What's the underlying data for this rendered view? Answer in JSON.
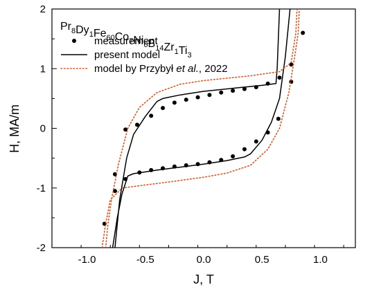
{
  "chart_data": {
    "type": "line",
    "formula": [
      {
        "t": "Pr",
        "sub": "8"
      },
      {
        "t": "Dy",
        "sub": "1"
      },
      {
        "t": "Fe",
        "sub": "60"
      },
      {
        "t": "Co",
        "sub": "7"
      },
      {
        "t": "Ni",
        "sub": "6"
      },
      {
        "t": "B",
        "sub": "14"
      },
      {
        "t": "Zr",
        "sub": "1"
      },
      {
        "t": "Ti",
        "sub": "3"
      }
    ],
    "xlabel": "J, T",
    "ylabel": "H, MA/m",
    "xlim": [
      -1.3,
      1.3
    ],
    "ylim": [
      -2,
      2
    ],
    "xticks": [
      -1.0,
      -0.5,
      0.0,
      0.5,
      1.0
    ],
    "xtick_labels": [
      "-1.0",
      "-0.5",
      "0.0",
      "0.5",
      "1.0"
    ],
    "yticks": [
      -2,
      -1,
      0,
      1,
      2
    ],
    "ytick_labels": [
      "-2",
      "-1",
      "0",
      "1",
      "2"
    ],
    "legend_position": "top-left",
    "series": [
      {
        "name": "measurement",
        "style": "scatter",
        "color": "#000000",
        "points": [
          [
            -0.85,
            -1.6
          ],
          [
            -0.76,
            -1.05
          ],
          [
            -0.76,
            -0.77
          ],
          [
            -0.67,
            -0.85
          ],
          [
            -0.55,
            -0.74
          ],
          [
            -0.45,
            -0.7
          ],
          [
            -0.35,
            -0.67
          ],
          [
            -0.25,
            -0.64
          ],
          [
            -0.15,
            -0.62
          ],
          [
            -0.05,
            -0.6
          ],
          [
            0.05,
            -0.57
          ],
          [
            0.15,
            -0.53
          ],
          [
            0.25,
            -0.47
          ],
          [
            0.35,
            -0.35
          ],
          [
            0.45,
            -0.22
          ],
          [
            0.55,
            -0.07
          ],
          [
            0.64,
            0.16
          ],
          [
            0.75,
            0.78
          ],
          [
            0.75,
            1.07
          ],
          [
            0.85,
            1.6
          ],
          [
            -0.67,
            -0.02
          ],
          [
            -0.57,
            0.06
          ],
          [
            -0.45,
            0.21
          ],
          [
            -0.35,
            0.34
          ],
          [
            -0.25,
            0.43
          ],
          [
            -0.15,
            0.48
          ],
          [
            -0.05,
            0.52
          ],
          [
            0.05,
            0.56
          ],
          [
            0.15,
            0.6
          ],
          [
            0.25,
            0.63
          ],
          [
            0.35,
            0.66
          ],
          [
            0.45,
            0.69
          ],
          [
            0.55,
            0.75
          ],
          [
            0.65,
            0.85
          ]
        ]
      },
      {
        "name": "present model",
        "style": "solid",
        "color": "#000000",
        "points": [
          [
            -0.78,
            -2.0
          ],
          [
            -0.74,
            -1.5
          ],
          [
            -0.7,
            -1.1
          ],
          [
            -0.65,
            -0.8
          ],
          [
            -0.6,
            -0.76
          ],
          [
            -0.5,
            -0.73
          ],
          [
            -0.4,
            -0.7
          ],
          [
            -0.2,
            -0.65
          ],
          [
            0.0,
            -0.6
          ],
          [
            0.2,
            -0.54
          ],
          [
            0.35,
            -0.48
          ],
          [
            0.4,
            -0.43
          ],
          [
            0.5,
            -0.2
          ],
          [
            0.58,
            0.1
          ],
          [
            0.65,
            0.5
          ],
          [
            0.7,
            1.2
          ],
          [
            0.74,
            2.0
          ],
          null,
          [
            0.65,
            2.0
          ],
          [
            0.64,
            1.5
          ],
          [
            0.63,
            1.0
          ],
          [
            0.62,
            0.75
          ],
          [
            0.5,
            0.72
          ],
          [
            0.3,
            0.68
          ],
          [
            0.0,
            0.62
          ],
          [
            -0.2,
            0.56
          ],
          [
            -0.35,
            0.5
          ],
          [
            -0.4,
            0.45
          ],
          [
            -0.5,
            0.2
          ],
          [
            -0.6,
            -0.1
          ],
          [
            -0.66,
            -0.5
          ],
          [
            -0.72,
            -1.2
          ],
          [
            -0.76,
            -2.0
          ]
        ]
      },
      {
        "name": "model by Przybył et al., 2022",
        "name_parts": [
          "model by Przybył ",
          "et al.",
          ", 2022"
        ],
        "style": "dotted",
        "color": "#d9531e",
        "points": [
          [
            -0.87,
            -2.0
          ],
          [
            -0.84,
            -1.6
          ],
          [
            -0.8,
            -1.2
          ],
          [
            -0.7,
            -1.0
          ],
          [
            -0.5,
            -0.95
          ],
          [
            -0.3,
            -0.9
          ],
          [
            0.0,
            -0.82
          ],
          [
            0.2,
            -0.75
          ],
          [
            0.4,
            -0.62
          ],
          [
            0.55,
            -0.35
          ],
          [
            0.65,
            0.0
          ],
          [
            0.73,
            0.6
          ],
          [
            0.78,
            1.2
          ],
          [
            0.81,
            1.6
          ],
          [
            0.82,
            2.0
          ],
          null,
          [
            0.8,
            2.0
          ],
          [
            0.79,
            1.6
          ],
          [
            0.75,
            1.1
          ],
          [
            0.65,
            0.95
          ],
          [
            0.4,
            0.88
          ],
          [
            0.0,
            0.8
          ],
          [
            -0.2,
            0.74
          ],
          [
            -0.4,
            0.6
          ],
          [
            -0.55,
            0.35
          ],
          [
            -0.65,
            0.0
          ],
          [
            -0.73,
            -0.6
          ],
          [
            -0.79,
            -1.2
          ],
          [
            -0.82,
            -1.6
          ],
          [
            -0.84,
            -2.0
          ]
        ]
      }
    ]
  }
}
